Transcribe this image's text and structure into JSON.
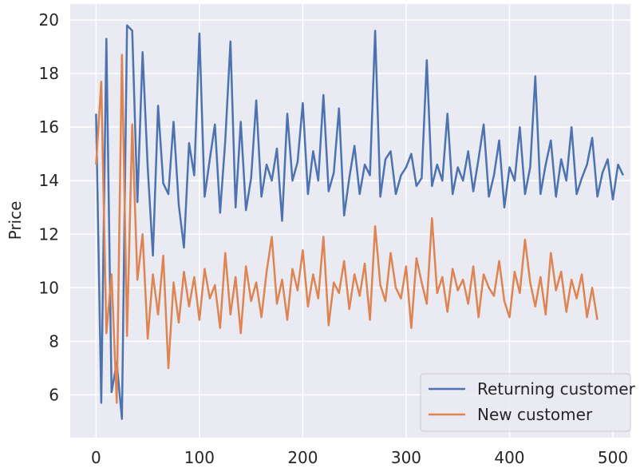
{
  "chart_data": {
    "type": "line",
    "ylabel": "Price",
    "xlim": [
      -25,
      517
    ],
    "ylim": [
      4.4,
      20.6
    ],
    "xticks": [
      0,
      100,
      200,
      300,
      400,
      500
    ],
    "yticks": [
      6,
      8,
      10,
      12,
      14,
      16,
      18,
      20
    ],
    "grid": true,
    "legend": "lower right",
    "series": [
      {
        "name": "Returning customer",
        "color": "#4c72b0",
        "x": [
          0,
          5,
          10,
          15,
          20,
          25,
          30,
          35,
          40,
          45,
          50,
          55,
          60,
          65,
          70,
          75,
          80,
          85,
          90,
          95,
          100,
          105,
          110,
          115,
          120,
          125,
          130,
          135,
          140,
          145,
          150,
          155,
          160,
          165,
          170,
          175,
          180,
          185,
          190,
          195,
          200,
          205,
          210,
          215,
          220,
          225,
          230,
          235,
          240,
          245,
          250,
          255,
          260,
          265,
          270,
          275,
          280,
          285,
          290,
          295,
          300,
          305,
          310,
          315,
          320,
          325,
          330,
          335,
          340,
          345,
          350,
          355,
          360,
          365,
          370,
          375,
          380,
          385,
          390,
          395,
          400,
          405,
          410,
          415,
          420,
          425,
          430,
          435,
          440,
          445,
          450,
          455,
          460,
          465,
          470,
          475,
          480,
          485,
          490,
          495,
          500,
          505,
          510
        ],
        "values": [
          16.5,
          5.7,
          19.3,
          6.1,
          7.2,
          5.1,
          19.8,
          19.6,
          13.2,
          18.8,
          14.5,
          11.2,
          16.8,
          13.9,
          13.5,
          16.2,
          13.1,
          11.5,
          15.4,
          14.2,
          19.5,
          13.4,
          14.8,
          16.1,
          12.8,
          15.5,
          19.2,
          13.0,
          16.2,
          12.9,
          14.1,
          17.0,
          13.4,
          14.6,
          14.0,
          15.2,
          12.5,
          16.5,
          14.0,
          14.7,
          16.9,
          13.5,
          15.1,
          14.0,
          17.2,
          13.6,
          14.3,
          16.7,
          12.7,
          14.1,
          15.3,
          13.5,
          14.6,
          14.2,
          19.6,
          13.4,
          14.8,
          15.1,
          13.5,
          14.2,
          14.5,
          15.0,
          13.8,
          14.1,
          18.5,
          13.8,
          14.6,
          14.0,
          16.5,
          13.5,
          14.5,
          14.0,
          15.1,
          13.6,
          14.8,
          16.1,
          13.4,
          14.2,
          15.5,
          13.0,
          14.5,
          14.0,
          16.0,
          13.5,
          14.5,
          17.9,
          13.5,
          14.6,
          15.5,
          13.4,
          14.8,
          14.0,
          16.0,
          13.5,
          14.1,
          14.6,
          15.6,
          13.4,
          14.3,
          14.8,
          13.3,
          14.6,
          14.2
        ]
      },
      {
        "name": "New customer",
        "color": "#dd8452",
        "x": [
          0,
          5,
          10,
          15,
          20,
          25,
          30,
          35,
          40,
          45,
          50,
          55,
          60,
          65,
          70,
          75,
          80,
          85,
          90,
          95,
          100,
          105,
          110,
          115,
          120,
          125,
          130,
          135,
          140,
          145,
          150,
          155,
          160,
          165,
          170,
          175,
          180,
          185,
          190,
          195,
          200,
          205,
          210,
          215,
          220,
          225,
          230,
          235,
          240,
          245,
          250,
          255,
          260,
          265,
          270,
          275,
          280,
          285,
          290,
          295,
          300,
          305,
          310,
          315,
          320,
          325,
          330,
          335,
          340,
          345,
          350,
          355,
          360,
          365,
          370,
          375,
          380,
          385,
          390,
          395,
          400,
          405,
          410,
          415,
          420,
          425,
          430,
          435,
          440,
          445,
          450,
          455,
          460,
          465,
          470,
          475,
          480,
          485
        ],
        "values": [
          14.6,
          17.7,
          8.3,
          10.5,
          5.7,
          18.7,
          8.2,
          16.1,
          10.3,
          12.0,
          8.1,
          10.5,
          9.0,
          11.2,
          7.0,
          10.2,
          8.7,
          10.6,
          9.3,
          10.4,
          8.8,
          10.7,
          9.6,
          10.1,
          8.5,
          11.3,
          9.0,
          10.4,
          8.3,
          10.8,
          9.5,
          10.2,
          8.9,
          10.6,
          11.9,
          9.4,
          10.3,
          8.8,
          10.7,
          9.9,
          11.4,
          9.3,
          10.5,
          9.6,
          11.9,
          8.6,
          10.2,
          9.8,
          11.0,
          9.2,
          10.5,
          9.7,
          10.9,
          8.8,
          12.3,
          10.1,
          9.5,
          11.3,
          10.0,
          9.6,
          10.8,
          8.5,
          11.1,
          10.2,
          9.4,
          12.6,
          9.8,
          10.4,
          9.1,
          10.7,
          9.9,
          10.3,
          9.4,
          10.8,
          8.9,
          10.5,
          10.0,
          9.7,
          11.0,
          9.5,
          8.9,
          10.6,
          9.8,
          11.8,
          10.2,
          9.3,
          10.4,
          9.0,
          11.3,
          9.9,
          10.6,
          9.1,
          10.3,
          9.6,
          10.5,
          8.9,
          10.0,
          8.8
        ]
      }
    ]
  }
}
